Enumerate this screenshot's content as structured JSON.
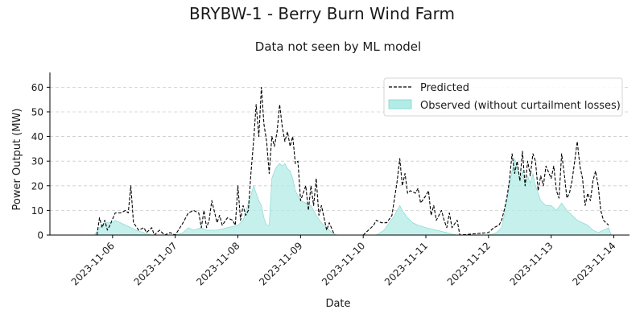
{
  "chart_data": {
    "type": "area",
    "title": "BRYBW-1 - Berry Burn Wind Farm",
    "subtitle": "Data not seen by ML model",
    "xlabel": "Date",
    "ylabel": "Power Output (MW)",
    "xlim": [
      "2023-11-05",
      "2023-11-14 06:00"
    ],
    "ylim": [
      0,
      66
    ],
    "x_ticks": [
      "2023-11-06",
      "2023-11-07",
      "2023-11-08",
      "2023-11-09",
      "2023-11-10",
      "2023-11-11",
      "2023-11-12",
      "2023-11-13",
      "2023-11-14"
    ],
    "y_ticks": [
      0,
      10,
      20,
      30,
      40,
      50,
      60
    ],
    "grid": "horizontal dashed",
    "legend_position": "top-right",
    "colors": {
      "predicted": "#000000",
      "observed_fill": "#b3ebe6",
      "observed_edge": "#7fd6cf",
      "grid": "#cccccc"
    },
    "series": [
      {
        "name": "Predicted",
        "style": "dashed-line",
        "points": [
          [
            "2023-11-05 18:00",
            0
          ],
          [
            "2023-11-05 19:00",
            7
          ],
          [
            "2023-11-05 20:00",
            3
          ],
          [
            "2023-11-05 21:00",
            6
          ],
          [
            "2023-11-05 22:00",
            2
          ],
          [
            "2023-11-05 23:00",
            4
          ],
          [
            "2023-11-06 01:00",
            9
          ],
          [
            "2023-11-06 03:00",
            9
          ],
          [
            "2023-11-06 05:00",
            10
          ],
          [
            "2023-11-06 06:00",
            9
          ],
          [
            "2023-11-06 07:00",
            20
          ],
          [
            "2023-11-06 08:00",
            5
          ],
          [
            "2023-11-06 10:00",
            2
          ],
          [
            "2023-11-06 12:00",
            3
          ],
          [
            "2023-11-06 13:00",
            1
          ],
          [
            "2023-11-06 15:00",
            3
          ],
          [
            "2023-11-06 16:00",
            0
          ],
          [
            "2023-11-06 18:00",
            2
          ],
          [
            "2023-11-06 20:00",
            0
          ],
          [
            "2023-11-06 22:00",
            1
          ],
          [
            "2023-11-07 00:00",
            0
          ],
          [
            "2023-11-07 03:00",
            5
          ],
          [
            "2023-11-07 05:00",
            9
          ],
          [
            "2023-11-07 07:00",
            10
          ],
          [
            "2023-11-07 09:00",
            9
          ],
          [
            "2023-11-07 10:00",
            3
          ],
          [
            "2023-11-07 11:00",
            10
          ],
          [
            "2023-11-07 12:00",
            3
          ],
          [
            "2023-11-07 13:00",
            6
          ],
          [
            "2023-11-07 14:00",
            14
          ],
          [
            "2023-11-07 16:00",
            5
          ],
          [
            "2023-11-07 17:00",
            8
          ],
          [
            "2023-11-07 18:00",
            4
          ],
          [
            "2023-11-07 20:00",
            7
          ],
          [
            "2023-11-07 22:00",
            6
          ],
          [
            "2023-11-07 23:00",
            4
          ],
          [
            "2023-11-08 00:00",
            20
          ],
          [
            "2023-11-08 01:00",
            6
          ],
          [
            "2023-11-08 02:00",
            12
          ],
          [
            "2023-11-08 03:00",
            8
          ],
          [
            "2023-11-08 04:00",
            10
          ],
          [
            "2023-11-08 05:00",
            25
          ],
          [
            "2023-11-08 06:00",
            38
          ],
          [
            "2023-11-08 07:00",
            53
          ],
          [
            "2023-11-08 08:00",
            40
          ],
          [
            "2023-11-08 09:00",
            60
          ],
          [
            "2023-11-08 10:00",
            45
          ],
          [
            "2023-11-08 11:00",
            38
          ],
          [
            "2023-11-08 12:00",
            25
          ],
          [
            "2023-11-08 13:00",
            40
          ],
          [
            "2023-11-08 14:00",
            36
          ],
          [
            "2023-11-08 15:00",
            42
          ],
          [
            "2023-11-08 16:00",
            53
          ],
          [
            "2023-11-08 17:00",
            44
          ],
          [
            "2023-11-08 18:00",
            38
          ],
          [
            "2023-11-08 19:00",
            42
          ],
          [
            "2023-11-08 20:00",
            36
          ],
          [
            "2023-11-08 21:00",
            40
          ],
          [
            "2023-11-08 22:00",
            29
          ],
          [
            "2023-11-08 23:00",
            30
          ],
          [
            "2023-11-09 00:00",
            14
          ],
          [
            "2023-11-09 02:00",
            20
          ],
          [
            "2023-11-09 03:00",
            10
          ],
          [
            "2023-11-09 04:00",
            20
          ],
          [
            "2023-11-09 05:00",
            12
          ],
          [
            "2023-11-09 06:00",
            23
          ],
          [
            "2023-11-09 07:00",
            8
          ],
          [
            "2023-11-09 08:00",
            12
          ],
          [
            "2023-11-09 10:00",
            2
          ],
          [
            "2023-11-09 11:00",
            5
          ],
          [
            "2023-11-09 13:00",
            0
          ],
          [
            "2023-11-10 00:00",
            0
          ],
          [
            "2023-11-10 04:00",
            4
          ],
          [
            "2023-11-10 05:00",
            6
          ],
          [
            "2023-11-10 07:00",
            5
          ],
          [
            "2023-11-10 09:00",
            5
          ],
          [
            "2023-11-10 11:00",
            8
          ],
          [
            "2023-11-10 13:00",
            22
          ],
          [
            "2023-11-10 14:00",
            31
          ],
          [
            "2023-11-10 15:00",
            20
          ],
          [
            "2023-11-10 16:00",
            25
          ],
          [
            "2023-11-10 17:00",
            17
          ],
          [
            "2023-11-10 18:00",
            18
          ],
          [
            "2023-11-10 20:00",
            17
          ],
          [
            "2023-11-10 21:00",
            19
          ],
          [
            "2023-11-10 22:00",
            13
          ],
          [
            "2023-11-11 00:00",
            16
          ],
          [
            "2023-11-11 01:00",
            18
          ],
          [
            "2023-11-11 02:00",
            8
          ],
          [
            "2023-11-11 03:00",
            12
          ],
          [
            "2023-11-11 04:00",
            6
          ],
          [
            "2023-11-11 06:00",
            10
          ],
          [
            "2023-11-11 07:00",
            6
          ],
          [
            "2023-11-11 08:00",
            3
          ],
          [
            "2023-11-11 09:00",
            9
          ],
          [
            "2023-11-11 10:00",
            3
          ],
          [
            "2023-11-11 12:00",
            6
          ],
          [
            "2023-11-11 13:00",
            0
          ],
          [
            "2023-11-12 00:00",
            1
          ],
          [
            "2023-11-12 02:00",
            3
          ],
          [
            "2023-11-12 04:00",
            4
          ],
          [
            "2023-11-12 05:00",
            6
          ],
          [
            "2023-11-12 06:00",
            10
          ],
          [
            "2023-11-12 07:00",
            15
          ],
          [
            "2023-11-12 08:00",
            22
          ],
          [
            "2023-11-12 09:00",
            33
          ],
          [
            "2023-11-12 10:00",
            25
          ],
          [
            "2023-11-12 11:00",
            30
          ],
          [
            "2023-11-12 12:00",
            22
          ],
          [
            "2023-11-12 13:00",
            34
          ],
          [
            "2023-11-12 14:00",
            20
          ],
          [
            "2023-11-12 15:00",
            30
          ],
          [
            "2023-11-12 16:00",
            24
          ],
          [
            "2023-11-12 17:00",
            33
          ],
          [
            "2023-11-12 18:00",
            30
          ],
          [
            "2023-11-12 19:00",
            18
          ],
          [
            "2023-11-12 20:00",
            24
          ],
          [
            "2023-11-12 21:00",
            20
          ],
          [
            "2023-11-12 22:00",
            28
          ],
          [
            "2023-11-13 00:00",
            23
          ],
          [
            "2023-11-13 01:00",
            28
          ],
          [
            "2023-11-13 02:00",
            18
          ],
          [
            "2023-11-13 03:00",
            15
          ],
          [
            "2023-11-13 04:00",
            33
          ],
          [
            "2023-11-13 05:00",
            25
          ],
          [
            "2023-11-13 06:00",
            15
          ],
          [
            "2023-11-13 07:00",
            17
          ],
          [
            "2023-11-13 08:00",
            22
          ],
          [
            "2023-11-13 09:00",
            30
          ],
          [
            "2023-11-13 10:00",
            38
          ],
          [
            "2023-11-13 11:00",
            28
          ],
          [
            "2023-11-13 12:00",
            23
          ],
          [
            "2023-11-13 13:00",
            12
          ],
          [
            "2023-11-13 14:00",
            17
          ],
          [
            "2023-11-13 15:00",
            14
          ],
          [
            "2023-11-13 16:00",
            22
          ],
          [
            "2023-11-13 17:00",
            26
          ],
          [
            "2023-11-13 18:00",
            20
          ],
          [
            "2023-11-13 19:00",
            10
          ],
          [
            "2023-11-13 20:00",
            6
          ],
          [
            "2023-11-13 21:00",
            5
          ],
          [
            "2023-11-13 22:00",
            4
          ]
        ]
      },
      {
        "name": "Observed (without curtailment losses)",
        "style": "filled-area",
        "points": [
          [
            "2023-11-05 17:00",
            0
          ],
          [
            "2023-11-05 19:00",
            3
          ],
          [
            "2023-11-05 21:00",
            5
          ],
          [
            "2023-11-06 00:00",
            5
          ],
          [
            "2023-11-06 01:00",
            6
          ],
          [
            "2023-11-06 03:00",
            5
          ],
          [
            "2023-11-06 05:00",
            4
          ],
          [
            "2023-11-06 07:00",
            3
          ],
          [
            "2023-11-06 09:00",
            2
          ],
          [
            "2023-11-06 12:00",
            1
          ],
          [
            "2023-11-06 15:00",
            0
          ],
          [
            "2023-11-07 00:00",
            0
          ],
          [
            "2023-11-07 03:00",
            1
          ],
          [
            "2023-11-07 05:00",
            3
          ],
          [
            "2023-11-07 07:00",
            2
          ],
          [
            "2023-11-07 10:00",
            3
          ],
          [
            "2023-11-07 12:00",
            2
          ],
          [
            "2023-11-07 16:00",
            2
          ],
          [
            "2023-11-07 20:00",
            3
          ],
          [
            "2023-11-08 00:00",
            4
          ],
          [
            "2023-11-08 02:00",
            6
          ],
          [
            "2023-11-08 04:00",
            13
          ],
          [
            "2023-11-08 05:00",
            16
          ],
          [
            "2023-11-08 06:00",
            20
          ],
          [
            "2023-11-08 07:00",
            17
          ],
          [
            "2023-11-08 08:00",
            14
          ],
          [
            "2023-11-08 09:00",
            12
          ],
          [
            "2023-11-08 10:00",
            7
          ],
          [
            "2023-11-08 11:00",
            4
          ],
          [
            "2023-11-08 12:00",
            4
          ],
          [
            "2023-11-08 13:00",
            23
          ],
          [
            "2023-11-08 14:00",
            26
          ],
          [
            "2023-11-08 15:00",
            28
          ],
          [
            "2023-11-08 16:00",
            29
          ],
          [
            "2023-11-08 17:00",
            28
          ],
          [
            "2023-11-08 18:00",
            29
          ],
          [
            "2023-11-08 19:00",
            27
          ],
          [
            "2023-11-08 20:00",
            26
          ],
          [
            "2023-11-08 21:00",
            23
          ],
          [
            "2023-11-08 22:00",
            18
          ],
          [
            "2023-11-08 23:00",
            16
          ],
          [
            "2023-11-09 00:00",
            14
          ],
          [
            "2023-11-09 02:00",
            13
          ],
          [
            "2023-11-09 04:00",
            12
          ],
          [
            "2023-11-09 06:00",
            8
          ],
          [
            "2023-11-09 08:00",
            5
          ],
          [
            "2023-11-09 10:00",
            3
          ],
          [
            "2023-11-09 12:00",
            1
          ],
          [
            "2023-11-09 14:00",
            0
          ],
          [
            "2023-11-10 05:00",
            0
          ],
          [
            "2023-11-10 08:00",
            2
          ],
          [
            "2023-11-10 10:00",
            5
          ],
          [
            "2023-11-10 12:00",
            8
          ],
          [
            "2023-11-10 14:00",
            12
          ],
          [
            "2023-11-10 15:00",
            10
          ],
          [
            "2023-11-10 17:00",
            7
          ],
          [
            "2023-11-10 19:00",
            5
          ],
          [
            "2023-11-10 21:00",
            4
          ],
          [
            "2023-11-11 00:00",
            3
          ],
          [
            "2023-11-11 04:00",
            2
          ],
          [
            "2023-11-11 08:00",
            1
          ],
          [
            "2023-11-11 12:00",
            0
          ],
          [
            "2023-11-12 00:00",
            0
          ],
          [
            "2023-11-12 03:00",
            1
          ],
          [
            "2023-11-12 05:00",
            3
          ],
          [
            "2023-11-12 06:00",
            8
          ],
          [
            "2023-11-12 07:00",
            14
          ],
          [
            "2023-11-12 08:00",
            20
          ],
          [
            "2023-11-12 09:00",
            26
          ],
          [
            "2023-11-12 10:00",
            31
          ],
          [
            "2023-11-12 11:00",
            28
          ],
          [
            "2023-11-12 12:00",
            22
          ],
          [
            "2023-11-12 13:00",
            26
          ],
          [
            "2023-11-12 14:00",
            20
          ],
          [
            "2023-11-12 15:00",
            24
          ],
          [
            "2023-11-12 16:00",
            21
          ],
          [
            "2023-11-12 17:00",
            25
          ],
          [
            "2023-11-12 18:00",
            20
          ],
          [
            "2023-11-12 20:00",
            14
          ],
          [
            "2023-11-12 22:00",
            12
          ],
          [
            "2023-11-13 00:00",
            12
          ],
          [
            "2023-11-13 02:00",
            10
          ],
          [
            "2023-11-13 04:00",
            13
          ],
          [
            "2023-11-13 06:00",
            10
          ],
          [
            "2023-11-13 08:00",
            8
          ],
          [
            "2023-11-13 10:00",
            6
          ],
          [
            "2023-11-13 12:00",
            5
          ],
          [
            "2023-11-13 14:00",
            4
          ],
          [
            "2023-11-13 16:00",
            2
          ],
          [
            "2023-11-13 18:00",
            1
          ],
          [
            "2023-11-13 20:00",
            2
          ],
          [
            "2023-11-13 22:00",
            3
          ],
          [
            "2023-11-13 23:00",
            0
          ]
        ]
      }
    ]
  }
}
